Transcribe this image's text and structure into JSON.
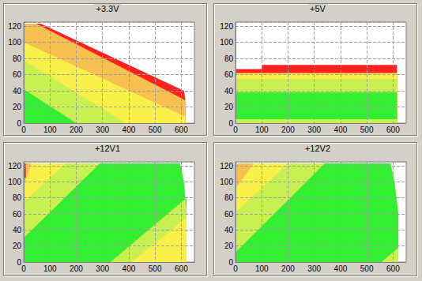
{
  "chart_data": [
    {
      "type": "polygon",
      "title": "+3.3V",
      "xlim": [
        0,
        650
      ],
      "xticks": [
        0,
        100,
        200,
        300,
        400,
        500,
        600
      ],
      "ylim": [
        0,
        125
      ],
      "yticks": [
        0,
        20,
        40,
        60,
        80,
        100,
        120
      ],
      "grid": true,
      "zones": [
        {
          "color": "#ff2020",
          "points": [
            [
              0,
              0
            ],
            [
              0,
              123
            ],
            [
              65,
              123
            ],
            [
              610,
              40
            ],
            [
              615,
              30
            ],
            [
              615,
              0
            ]
          ]
        },
        {
          "color": "#f8c050",
          "points": [
            [
              0,
              0
            ],
            [
              0,
              123
            ],
            [
              48,
              123
            ],
            [
              600,
              31
            ],
            [
              615,
              28
            ],
            [
              615,
              0
            ]
          ]
        },
        {
          "color": "#f8f048",
          "points": [
            [
              0,
              0
            ],
            [
              0,
              100
            ],
            [
              615,
              8
            ],
            [
              615,
              0
            ]
          ]
        },
        {
          "color": "#c8f050",
          "points": [
            [
              0,
              0
            ],
            [
              0,
              78
            ],
            [
              390,
              0
            ]
          ]
        },
        {
          "color": "#33ee33",
          "points": [
            [
              0,
              0
            ],
            [
              0,
              42
            ],
            [
              200,
              0
            ]
          ]
        }
      ]
    },
    {
      "type": "polygon",
      "title": "+5V",
      "xlim": [
        0,
        650
      ],
      "xticks": [
        0,
        100,
        200,
        300,
        400,
        500,
        600
      ],
      "ylim": [
        0,
        125
      ],
      "yticks": [
        0,
        20,
        40,
        60,
        80,
        100,
        120
      ],
      "grid": true,
      "zones": [
        {
          "color": "#ff2020",
          "points": [
            [
              0,
              0
            ],
            [
              0,
              67
            ],
            [
              100,
              67
            ],
            [
              100,
              72
            ],
            [
              615,
              72
            ],
            [
              615,
              0
            ]
          ]
        },
        {
          "color": "#f8f048",
          "points": [
            [
              0,
              0
            ],
            [
              0,
              62
            ],
            [
              615,
              62
            ],
            [
              615,
              0
            ]
          ]
        },
        {
          "color": "#c8f050",
          "points": [
            [
              0,
              0
            ],
            [
              0,
              55
            ],
            [
              615,
              55
            ],
            [
              615,
              0
            ]
          ]
        },
        {
          "color": "#33ee33",
          "points": [
            [
              0,
              5
            ],
            [
              0,
              38
            ],
            [
              615,
              38
            ],
            [
              615,
              5
            ]
          ]
        }
      ]
    },
    {
      "type": "polygon",
      "title": "+12V1",
      "xlim": [
        0,
        650
      ],
      "xticks": [
        0,
        100,
        200,
        300,
        400,
        500,
        600
      ],
      "ylim": [
        0,
        125
      ],
      "yticks": [
        0,
        20,
        40,
        60,
        80,
        100,
        120
      ],
      "grid": true,
      "zones": [
        {
          "color": "#f8f048",
          "points": [
            [
              0,
              0
            ],
            [
              0,
              123
            ],
            [
              595,
              123
            ],
            [
              610,
              100
            ],
            [
              620,
              60
            ],
            [
              620,
              0
            ]
          ]
        },
        {
          "color": "#c8f050",
          "points": [
            [
              0,
              0
            ],
            [
              0,
              75
            ],
            [
              160,
              123
            ],
            [
              595,
              123
            ],
            [
              610,
              100
            ],
            [
              620,
              60
            ],
            [
              620,
              55
            ],
            [
              410,
              0
            ]
          ]
        },
        {
          "color": "#33ee33",
          "points": [
            [
              0,
              0
            ],
            [
              0,
              30
            ],
            [
              290,
              123
            ],
            [
              595,
              123
            ],
            [
              610,
              100
            ],
            [
              620,
              60
            ],
            [
              620,
              80
            ],
            [
              330,
              0
            ]
          ]
        },
        {
          "color": "#f8c050",
          "points": [
            [
              0,
              95
            ],
            [
              0,
              123
            ],
            [
              30,
              123
            ]
          ]
        },
        {
          "color": "#ff2020",
          "points": [
            [
              0,
              105
            ],
            [
              0,
              123
            ],
            [
              8,
              123
            ],
            [
              8,
              105
            ]
          ]
        }
      ]
    },
    {
      "type": "polygon",
      "title": "+12V2",
      "xlim": [
        0,
        650
      ],
      "xticks": [
        0,
        100,
        200,
        300,
        400,
        500,
        600
      ],
      "ylim": [
        0,
        125
      ],
      "yticks": [
        0,
        20,
        40,
        60,
        80,
        100,
        120
      ],
      "grid": true,
      "zones": [
        {
          "color": "#f8f048",
          "points": [
            [
              0,
              0
            ],
            [
              0,
              123
            ],
            [
              590,
              123
            ],
            [
              605,
              100
            ],
            [
              620,
              60
            ],
            [
              620,
              0
            ]
          ]
        },
        {
          "color": "#c8f050",
          "points": [
            [
              0,
              0
            ],
            [
              0,
              62
            ],
            [
              200,
              123
            ],
            [
              590,
              123
            ],
            [
              605,
              100
            ],
            [
              620,
              60
            ],
            [
              620,
              0
            ]
          ]
        },
        {
          "color": "#33ee33",
          "points": [
            [
              0,
              0
            ],
            [
              0,
              12
            ],
            [
              340,
              123
            ],
            [
              590,
              123
            ],
            [
              605,
              100
            ],
            [
              620,
              60
            ],
            [
              620,
              18
            ],
            [
              555,
              0
            ]
          ]
        },
        {
          "color": "#f8c050",
          "points": [
            [
              0,
              92
            ],
            [
              0,
              123
            ],
            [
              70,
              123
            ]
          ]
        }
      ]
    }
  ]
}
